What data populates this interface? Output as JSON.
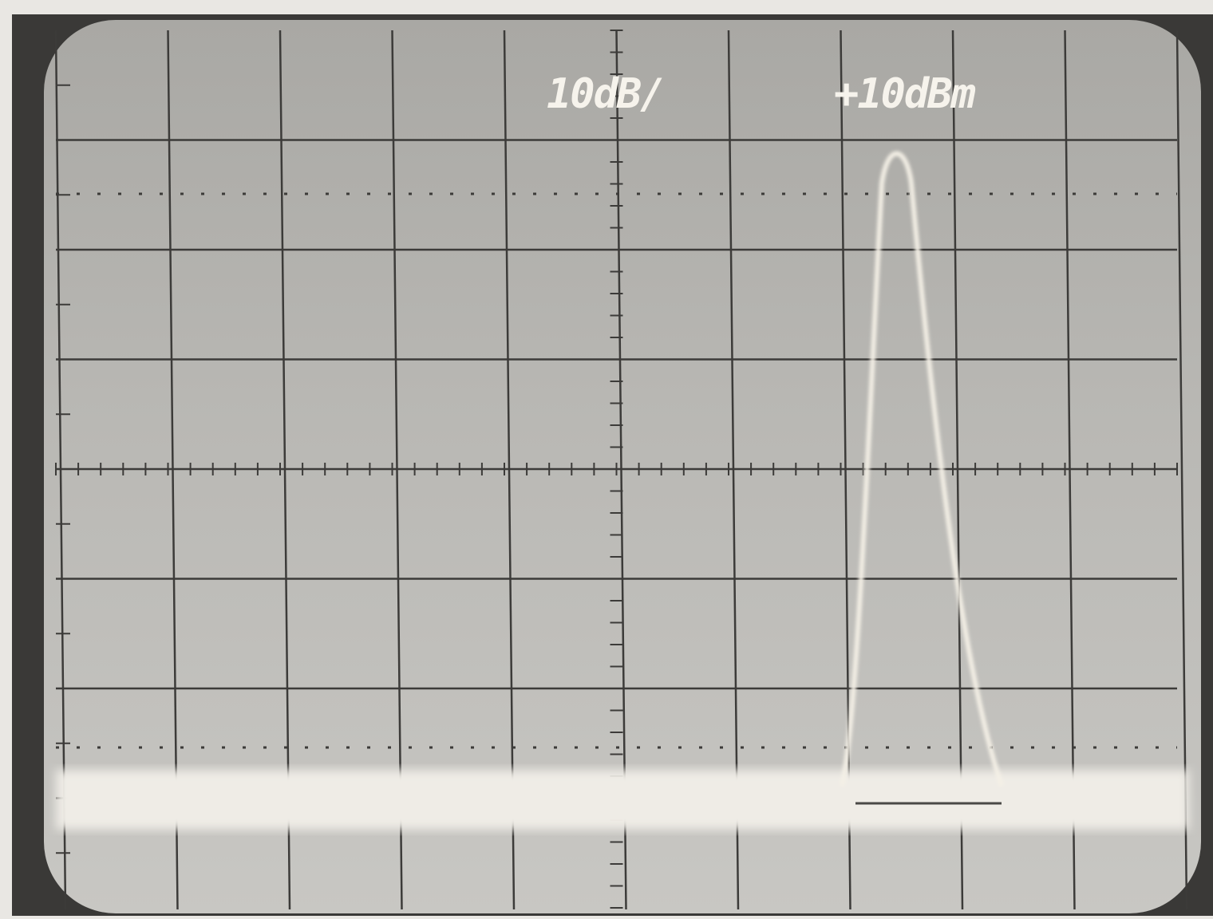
{
  "readouts": {
    "scale": "10dB/",
    "reference_level": "+10dBm"
  }
}
